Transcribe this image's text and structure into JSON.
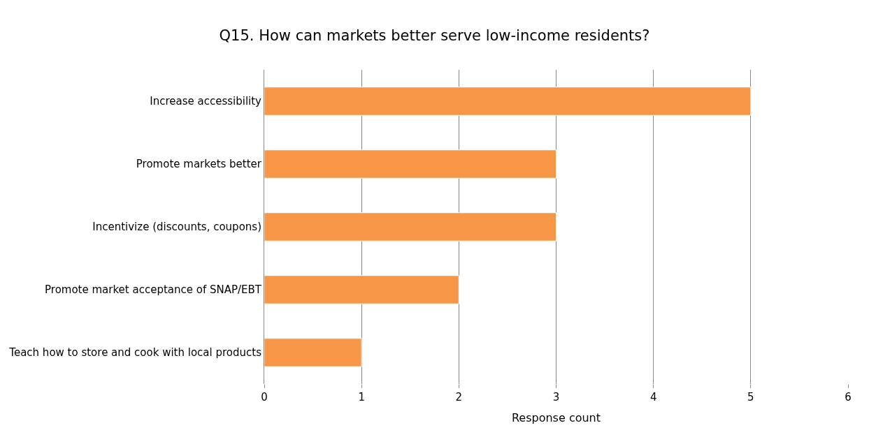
{
  "chart_data": {
    "type": "bar",
    "orientation": "horizontal",
    "title": "Q15. How can markets better serve low-income residents?",
    "xlabel": "Response count",
    "categories": [
      "Increase accessibility",
      "Promote markets better",
      "Incentivize (discounts, coupons)",
      "Promote market acceptance of SNAP/EBT",
      "Teach how to store and cook with local products"
    ],
    "values": [
      5,
      3,
      3,
      2,
      1
    ],
    "color": "#f79646",
    "xlim": [
      0,
      6
    ],
    "xticks": [
      0,
      1,
      2,
      3,
      4,
      5,
      6
    ],
    "grid": "x"
  }
}
